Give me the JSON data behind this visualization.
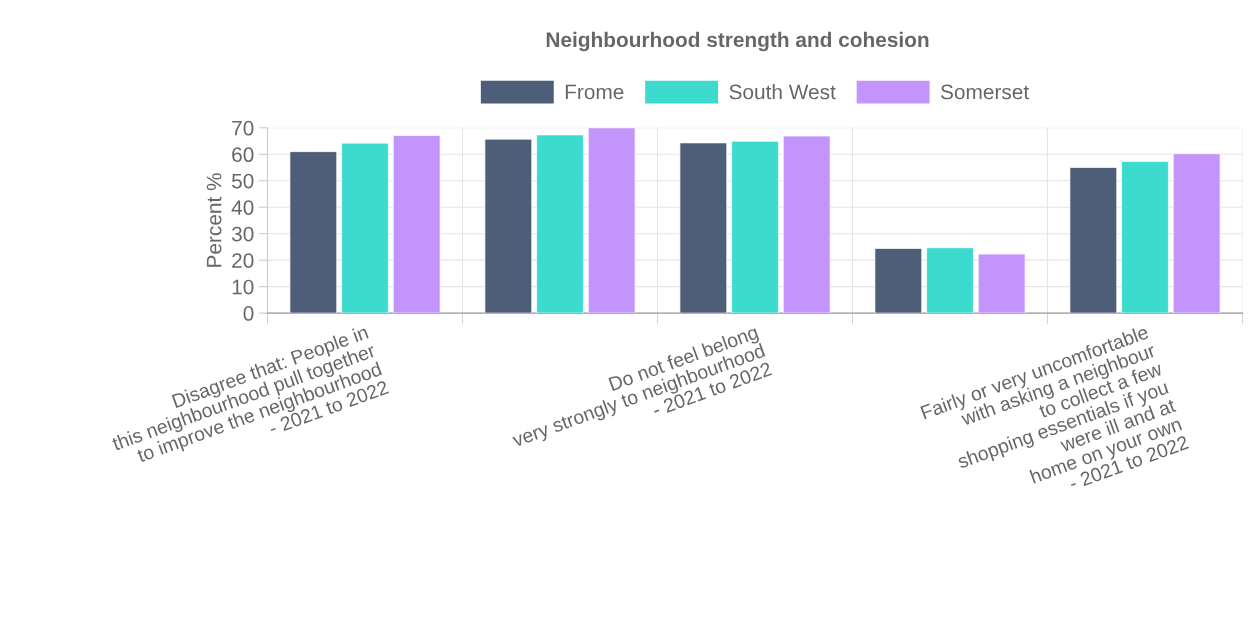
{
  "chart_data": {
    "type": "bar",
    "title": "Neighbourhood strength and cohesion",
    "ylabel": "Percent %",
    "categories": [
      "Disagree that: People in\nthis neighbourhood pull together\nto improve the neighbourhood\n- 2021 to 2022",
      null,
      "Do not feel belong\nvery strongly to neighbourhood\n- 2021 to 2022",
      null,
      "Fairly or very uncomfortable\nwith asking a neighbour\nto collect a few\nshopping essentials if you\nwere ill and at\nhome on your own\n- 2021 to 2022"
    ],
    "series": [
      {
        "name": "Frome",
        "color": "#4e5d78",
        "values": [
          61.0,
          65.7,
          64.3,
          24.4,
          55.0
        ]
      },
      {
        "name": "South West",
        "color": "#3cdbce",
        "values": [
          64.2,
          67.3,
          64.9,
          24.7,
          57.3
        ]
      },
      {
        "name": "Somerset",
        "color": "#c294fc",
        "values": [
          67.1,
          70.0,
          66.9,
          22.3,
          60.2
        ]
      }
    ],
    "ylim": [
      0,
      70
    ],
    "yticks": [
      0,
      10,
      20,
      30,
      40,
      50,
      60,
      70
    ],
    "grid": true,
    "legend": "top"
  }
}
